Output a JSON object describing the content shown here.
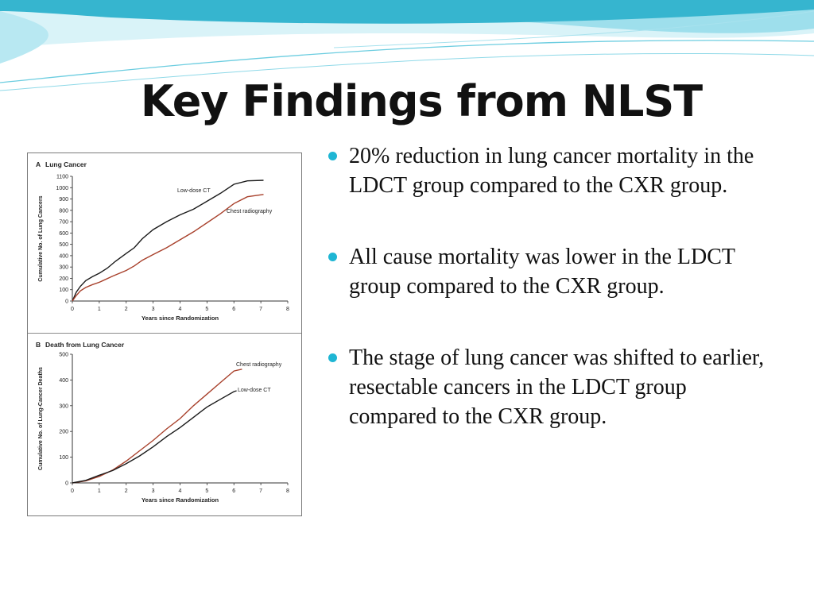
{
  "slide": {
    "title": "Key Findings from NLST",
    "bullets": [
      "20% reduction in lung cancer mortality in the LDCT group compared to the CXR group.",
      "All cause mortality was lower in the LDCT group compared to the CXR group.",
      "The stage of lung cancer was shifted to earlier, resectable cancers in the LDCT group compared to the CXR group."
    ],
    "colors": {
      "bullet": "#1fb6d4",
      "banner_light": "#d9f3f8",
      "banner_dark": "#36b5cf"
    }
  },
  "chart_data": [
    {
      "type": "line",
      "panel": "A",
      "title": "Lung Cancer",
      "xlabel": "Years since Randomization",
      "ylabel": "Cumulative No. of Lung Cancers",
      "xlim": [
        0,
        8
      ],
      "ylim": [
        0,
        1100
      ],
      "xticks": [
        0,
        1,
        2,
        3,
        4,
        5,
        6,
        7,
        8
      ],
      "yticks": [
        0,
        100,
        200,
        300,
        400,
        500,
        600,
        700,
        800,
        900,
        1000,
        1100
      ],
      "grid": false,
      "series": [
        {
          "name": "Low-dose CT",
          "color": "#1a1a1a",
          "x": [
            0,
            0.15,
            0.3,
            0.5,
            0.75,
            1,
            1.3,
            1.6,
            2,
            2.3,
            2.6,
            3,
            3.5,
            4,
            4.5,
            5,
            5.5,
            6,
            6.5,
            7.1
          ],
          "y": [
            0,
            80,
            130,
            180,
            215,
            245,
            290,
            350,
            420,
            470,
            550,
            630,
            700,
            760,
            810,
            880,
            950,
            1030,
            1060,
            1065
          ]
        },
        {
          "name": "Chest radiography",
          "color": "#a8402b",
          "x": [
            0,
            0.15,
            0.3,
            0.5,
            0.75,
            1,
            1.5,
            2,
            2.3,
            2.6,
            3,
            3.5,
            4,
            4.5,
            5,
            5.5,
            6,
            6.5,
            7.1
          ],
          "y": [
            0,
            50,
            90,
            120,
            145,
            165,
            220,
            270,
            310,
            360,
            410,
            470,
            540,
            610,
            690,
            770,
            860,
            920,
            940
          ]
        }
      ]
    },
    {
      "type": "line",
      "panel": "B",
      "title": "Death from Lung Cancer",
      "xlabel": "Years since Randomization",
      "ylabel": "Cumulative No. of Lung-Cancer Deaths",
      "xlim": [
        0,
        8
      ],
      "ylim": [
        0,
        500
      ],
      "xticks": [
        0,
        1,
        2,
        3,
        4,
        5,
        6,
        7,
        8
      ],
      "yticks": [
        0,
        100,
        200,
        300,
        400,
        500
      ],
      "grid": false,
      "series": [
        {
          "name": "Chest radiography",
          "color": "#a8402b",
          "x": [
            0,
            0.5,
            1,
            1.5,
            2,
            2.5,
            3,
            3.5,
            4,
            4.5,
            5,
            5.5,
            6,
            6.3
          ],
          "y": [
            0,
            8,
            25,
            50,
            85,
            125,
            165,
            210,
            250,
            300,
            345,
            390,
            435,
            442
          ]
        },
        {
          "name": "Low-dose CT",
          "color": "#1a1a1a",
          "x": [
            0,
            0.5,
            1,
            1.5,
            2,
            2.5,
            3,
            3.5,
            4,
            4.5,
            5,
            5.5,
            6,
            6.1
          ],
          "y": [
            0,
            10,
            30,
            48,
            75,
            105,
            140,
            180,
            215,
            255,
            295,
            325,
            355,
            358
          ]
        }
      ]
    }
  ]
}
